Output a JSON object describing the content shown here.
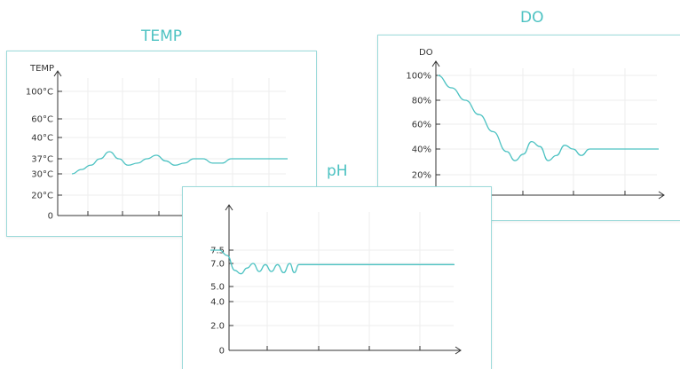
{
  "charts": {
    "temp": {
      "title": "TEMP"
    },
    "do": {
      "title": "DO"
    },
    "ph": {
      "title": "pH"
    }
  },
  "colors": {
    "line": "#4cc2c2",
    "border": "#9bdada",
    "axis": "#333333",
    "grid": "#eeeeee"
  },
  "chart_data": [
    {
      "id": "temp",
      "type": "line",
      "title": "TEMP",
      "ylabel": "TEMP",
      "yticks": [
        "0",
        "20°C",
        "30°C",
        "37°C",
        "40°C",
        "60°C",
        "100°C"
      ],
      "x": [
        0,
        0.3,
        0.6,
        0.9,
        1.2,
        1.5,
        1.8,
        2.1,
        2.4,
        2.7,
        3.0,
        3.3,
        3.6,
        3.9,
        4.2,
        4.5,
        4.8,
        5.1,
        5.4,
        5.7,
        6.0,
        6.3,
        6.6,
        6.9
      ],
      "series": [
        {
          "values": [
            30,
            32,
            34,
            37,
            38,
            37,
            34,
            35,
            37,
            37.5,
            36,
            34,
            35,
            37,
            37,
            35,
            35,
            37,
            37,
            37,
            37,
            37,
            37,
            37
          ]
        }
      ],
      "grid": true
    },
    {
      "id": "do",
      "type": "line",
      "title": "DO",
      "ylabel": "DO",
      "yticks": [
        "20%",
        "40%",
        "60%",
        "80%",
        "100%"
      ],
      "ylim": [
        10,
        100
      ],
      "x": [
        0,
        0.5,
        1.0,
        1.5,
        2.0,
        2.5,
        2.8,
        3.1,
        3.4,
        3.7,
        4.0,
        4.3,
        4.6,
        4.9,
        5.2,
        5.5,
        5.8,
        6.1,
        6.5,
        7.0,
        7.5,
        8.0
      ],
      "series": [
        {
          "values": [
            100,
            90,
            80,
            68,
            54,
            38,
            31,
            36,
            46,
            42,
            31,
            35,
            43,
            40,
            35,
            40,
            40,
            40,
            40,
            40,
            40,
            40
          ]
        }
      ],
      "grid": true
    },
    {
      "id": "ph",
      "type": "line",
      "title": "pH",
      "ylabel": "",
      "yticks": [
        "0",
        "2.0",
        "4.0",
        "5.0",
        "7.0",
        "7.5"
      ],
      "x": [
        0,
        0.3,
        0.55,
        0.8,
        1.0,
        1.2,
        1.4,
        1.6,
        1.8,
        2.0,
        2.2,
        2.4,
        2.6,
        2.75,
        2.9,
        3.1,
        3.5,
        4.0,
        5.0,
        6.0,
        7.0,
        8.0
      ],
      "series": [
        {
          "values": [
            7.5,
            7.5,
            7.3,
            6.4,
            6.1,
            6.6,
            7.0,
            6.3,
            6.9,
            6.3,
            6.9,
            6.2,
            7.0,
            6.2,
            6.9,
            6.9,
            6.9,
            6.9,
            6.9,
            6.9,
            6.9,
            6.9
          ]
        }
      ],
      "grid": true
    }
  ]
}
